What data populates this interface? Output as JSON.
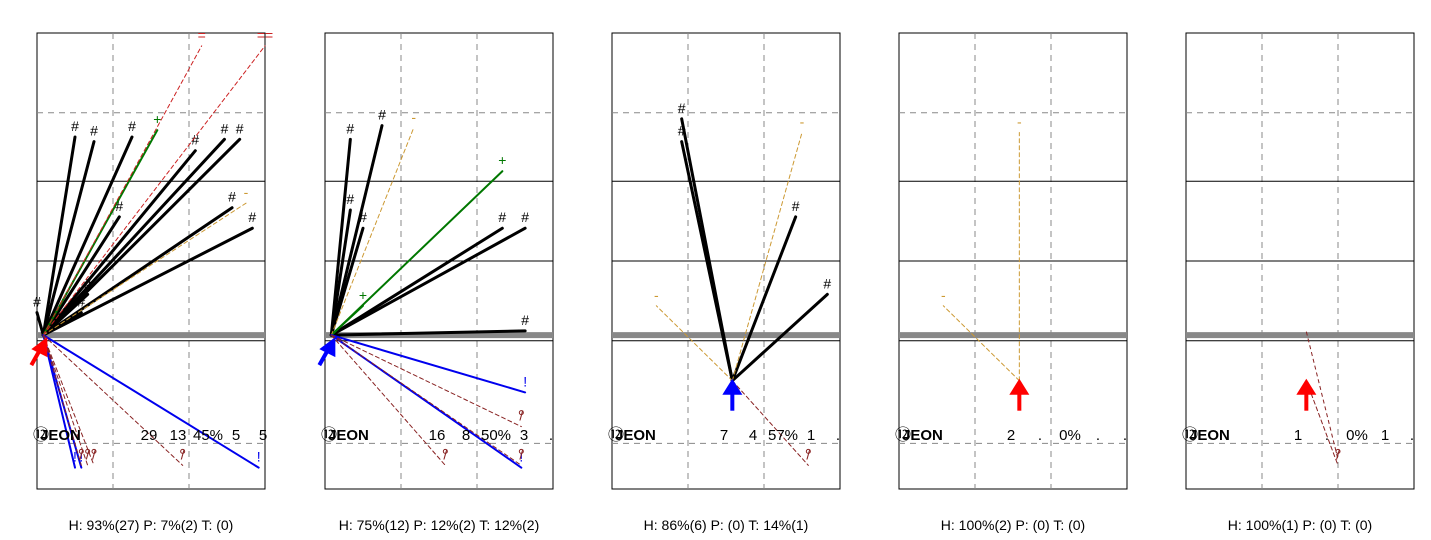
{
  "chart_data": [
    {
      "type": "scatter",
      "player": {
        "number": "⑫",
        "name": "JEON"
      },
      "stats": [
        "29",
        "13",
        "45%",
        "5",
        "5"
      ],
      "footer": "H: 93%(27)  P: 7%(2)  T: (0)",
      "origin": {
        "x": 0.5,
        "y": 6.75,
        "arrow_color": "#ff0000",
        "arrow_dir": "up-right"
      },
      "shots": [
        {
          "marker": "#",
          "kind": "made",
          "x": 4.5,
          "y": 15.5
        },
        {
          "marker": "#",
          "kind": "made",
          "x": 3.0,
          "y": 15.7
        },
        {
          "marker": "#",
          "kind": "made",
          "x": 7.5,
          "y": 15.7
        },
        {
          "marker": "#",
          "kind": "made",
          "x": 12.5,
          "y": 15.1
        },
        {
          "marker": "#",
          "kind": "made",
          "x": 14.8,
          "y": 15.6
        },
        {
          "marker": "#",
          "kind": "made",
          "x": 16.0,
          "y": 15.6
        },
        {
          "marker": "#",
          "kind": "made",
          "x": 15.4,
          "y": 12.6
        },
        {
          "marker": "#",
          "kind": "made",
          "x": 17.0,
          "y": 11.7
        },
        {
          "marker": "#",
          "kind": "made",
          "x": 6.5,
          "y": 12.2
        },
        {
          "marker": "#",
          "kind": "made",
          "x": 4.0,
          "y": 8.8
        },
        {
          "marker": "#",
          "kind": "made",
          "x": 3.5,
          "y": 8.0
        },
        {
          "marker": "#",
          "kind": "made",
          "x": 0.0,
          "y": 8.0
        },
        {
          "marker": "+",
          "kind": "assist",
          "x": 9.5,
          "y": 16.0
        },
        {
          "marker": "-",
          "kind": "miss",
          "x": 16.5,
          "y": 12.8
        },
        {
          "marker": "=",
          "kind": "other",
          "x": 13.0,
          "y": 19.7
        },
        {
          "marker": "==",
          "kind": "other",
          "x": 18.0,
          "y": 19.7
        },
        {
          "marker": "!",
          "kind": "turnover",
          "x": 17.5,
          "y": 1.2
        },
        {
          "marker": "!",
          "kind": "turnover",
          "x": 3.0,
          "y": 1.2
        },
        {
          "marker": "!",
          "kind": "turnover",
          "x": 3.5,
          "y": 1.2
        },
        {
          "marker": "/",
          "kind": "foul",
          "x": 3.5,
          "y": 1.3
        },
        {
          "marker": "/",
          "kind": "foul",
          "x": 4.0,
          "y": 1.3
        },
        {
          "marker": "/",
          "kind": "foul",
          "x": 4.5,
          "y": 1.3
        },
        {
          "marker": "/",
          "kind": "foul",
          "x": 11.5,
          "y": 1.3
        }
      ]
    },
    {
      "type": "scatter",
      "player": {
        "number": "⑫",
        "name": "JEON"
      },
      "stats": [
        "16",
        "8",
        "50%",
        "3",
        "."
      ],
      "footer": "H: 75%(12)  P: 12%(2)  T: 12%(2)",
      "origin": {
        "x": 0.5,
        "y": 6.75,
        "arrow_color": "#0000ff",
        "arrow_dir": "up-right"
      },
      "shots": [
        {
          "marker": "#",
          "kind": "made",
          "x": 2.0,
          "y": 15.6
        },
        {
          "marker": "#",
          "kind": "made",
          "x": 4.5,
          "y": 16.2
        },
        {
          "marker": "#",
          "kind": "made",
          "x": 2.0,
          "y": 12.5
        },
        {
          "marker": "#",
          "kind": "made",
          "x": 3.0,
          "y": 11.7
        },
        {
          "marker": "#",
          "kind": "made",
          "x": 14.0,
          "y": 11.7
        },
        {
          "marker": "#",
          "kind": "made",
          "x": 15.8,
          "y": 11.7
        },
        {
          "marker": "#",
          "kind": "made",
          "x": 15.8,
          "y": 7.2
        },
        {
          "marker": "+",
          "kind": "assist",
          "x": 14.0,
          "y": 14.2
        },
        {
          "marker": "+",
          "kind": "assist",
          "x": 3.0,
          "y": 8.3
        },
        {
          "marker": "-",
          "kind": "miss",
          "x": 7.0,
          "y": 16.1
        },
        {
          "marker": "!",
          "kind": "turnover",
          "x": 15.8,
          "y": 4.5
        },
        {
          "marker": "!",
          "kind": "turnover",
          "x": 15.5,
          "y": 1.2
        },
        {
          "marker": "/",
          "kind": "foul",
          "x": 15.5,
          "y": 3.0
        },
        {
          "marker": "/",
          "kind": "foul",
          "x": 9.5,
          "y": 1.3
        },
        {
          "marker": "/",
          "kind": "foul",
          "x": 15.5,
          "y": 1.3
        }
      ]
    },
    {
      "type": "scatter",
      "player": {
        "number": "⑫",
        "name": "JEON"
      },
      "stats": [
        "7",
        "4",
        "57%",
        "1",
        "."
      ],
      "footer": "H: 86%(6)  P: (0)  T: 14%(1)",
      "origin": {
        "x": 9.5,
        "y": 4.75,
        "arrow_color": "#0000ff",
        "arrow_dir": "up"
      },
      "shots": [
        {
          "marker": "#",
          "kind": "made",
          "x": 5.5,
          "y": 16.5
        },
        {
          "marker": "#",
          "kind": "made",
          "x": 5.5,
          "y": 15.5
        },
        {
          "marker": "#",
          "kind": "made",
          "x": 14.5,
          "y": 12.2
        },
        {
          "marker": "#",
          "kind": "made",
          "x": 17.0,
          "y": 8.8
        },
        {
          "marker": "-",
          "kind": "miss",
          "x": 15.0,
          "y": 15.9
        },
        {
          "marker": "-",
          "kind": "miss",
          "x": 3.5,
          "y": 8.3
        },
        {
          "marker": "/",
          "kind": "foul",
          "x": 15.5,
          "y": 1.3
        }
      ]
    },
    {
      "type": "scatter",
      "player": {
        "number": "⑫",
        "name": "JEON"
      },
      "stats": [
        "2",
        ".",
        "0%",
        ".",
        "."
      ],
      "footer": "H: 100%(2)  P: (0)  T: (0)",
      "origin": {
        "x": 9.5,
        "y": 4.75,
        "arrow_color": "#ff0000",
        "arrow_dir": "up"
      },
      "shots": [
        {
          "marker": "-",
          "kind": "miss",
          "x": 9.5,
          "y": 15.9
        },
        {
          "marker": "-",
          "kind": "miss",
          "x": 3.5,
          "y": 8.3
        }
      ]
    },
    {
      "type": "scatter",
      "player": {
        "number": "⑫",
        "name": "JEON"
      },
      "stats": [
        "1",
        ".",
        "0%",
        "1",
        "."
      ],
      "footer": "H: 100%(1)  P: (0)  T: (0)",
      "origin": {
        "x": 9.5,
        "y": 4.75,
        "arrow_color": "#ff0000",
        "arrow_dir": "up"
      },
      "shots": [
        {
          "marker": "/",
          "kind": "foul",
          "x": 12.0,
          "y": 1.3
        }
      ],
      "extra_lines": [
        {
          "kind": "foul",
          "from": [
            9.5,
            6.9
          ],
          "to": [
            12.0,
            1.3
          ]
        }
      ]
    }
  ],
  "colors": {
    "made": "#000000",
    "assist": "#007700",
    "miss": "#cc9933",
    "other": "#cc2222",
    "turnover": "#0000ee",
    "foul": "#882222",
    "midline": "#888888",
    "grid": "#888888"
  }
}
